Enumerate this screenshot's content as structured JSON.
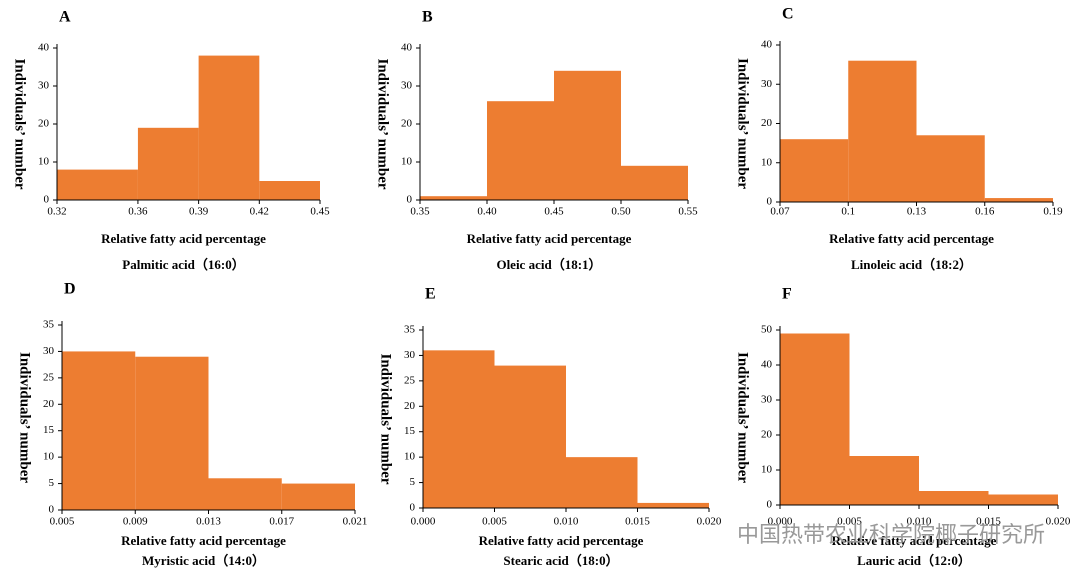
{
  "chart_data": [
    {
      "type": "histogram",
      "panel_label": "A",
      "ylabel": "Individuals’ number",
      "xlabel": "Relative fatty acid percentage",
      "subtitle": "Palmitic acid（16:0）",
      "bins": [
        0.32,
        0.36,
        0.39,
        0.42,
        0.45
      ],
      "values": [
        8,
        19,
        38,
        5
      ],
      "color": "#ED7D31",
      "xlim": [
        0.32,
        0.45
      ],
      "xticks": [
        0.32,
        0.36,
        0.39,
        0.42,
        0.45
      ],
      "ylim": [
        0,
        40
      ],
      "yticks": [
        0,
        10,
        20,
        30,
        40
      ]
    },
    {
      "type": "histogram",
      "panel_label": "B",
      "ylabel": "Individuals’ number",
      "xlabel": "Relative fatty acid percentage",
      "subtitle": "Oleic acid（18:1）",
      "bins": [
        0.35,
        0.4,
        0.45,
        0.5,
        0.55
      ],
      "values": [
        1,
        26,
        34,
        9
      ],
      "color": "#ED7D31",
      "xlim": [
        0.35,
        0.55
      ],
      "xticks": [
        0.35,
        {
          "value": 0.4,
          "label": "0.40"
        },
        0.45,
        {
          "value": 0.5,
          "label": "0.50"
        },
        0.55
      ],
      "ylim": [
        0,
        40
      ],
      "yticks": [
        0,
        10,
        20,
        30,
        40
      ]
    },
    {
      "type": "histogram",
      "panel_label": "C",
      "ylabel": "Individuals’ number",
      "xlabel": "Relative fatty acid percentage",
      "subtitle": "Linoleic acid（18:2）",
      "bins": [
        0.07,
        0.1,
        0.13,
        0.16,
        0.19
      ],
      "values": [
        16,
        36,
        17,
        1
      ],
      "color": "#ED7D31",
      "xlim": [
        0.07,
        0.19
      ],
      "xticks": [
        0.07,
        0.1,
        0.13,
        0.16,
        0.19
      ],
      "ylim": [
        0,
        40
      ],
      "yticks": [
        0,
        10,
        20,
        30,
        40
      ]
    },
    {
      "type": "histogram",
      "panel_label": "D",
      "ylabel": "Individuals’ number",
      "xlabel": "Relative fatty acid percentage",
      "subtitle": "Myristic acid（14:0）",
      "bins": [
        0.005,
        0.009,
        0.013,
        0.017,
        0.021
      ],
      "values": [
        30,
        29,
        6,
        5
      ],
      "color": "#ED7D31",
      "xlim": [
        0.005,
        0.021
      ],
      "xticks": [
        0.005,
        0.009,
        0.013,
        0.017,
        0.021
      ],
      "ylim": [
        0,
        35
      ],
      "yticks": [
        0,
        5,
        10,
        15,
        20,
        25,
        30,
        35
      ]
    },
    {
      "type": "histogram",
      "panel_label": "E",
      "ylabel": "Individuals’ number",
      "xlabel": "Relative fatty acid percentage",
      "subtitle": "Stearic acid（18:0）",
      "bins": [
        0,
        0.005,
        0.01,
        0.015,
        0.02
      ],
      "values": [
        31,
        28,
        10,
        1
      ],
      "color": "#ED7D31",
      "xlim": [
        0,
        0.02
      ],
      "xticks": [
        {
          "value": 0,
          "label": "0.000"
        },
        0.005,
        {
          "value": 0.01,
          "label": "0.010"
        },
        0.015,
        {
          "value": 0.02,
          "label": "0.020"
        }
      ],
      "ylim": [
        0,
        35
      ],
      "yticks": [
        0,
        5,
        10,
        15,
        20,
        25,
        30,
        35
      ]
    },
    {
      "type": "histogram",
      "panel_label": "F",
      "ylabel": "Individuals’ number",
      "xlabel": "Relative fatty acid percentage",
      "subtitle": "Lauric acid（12:0）",
      "bins": [
        0,
        0.005,
        0.01,
        0.015,
        0.02
      ],
      "values": [
        49,
        14,
        4,
        3
      ],
      "color": "#ED7D31",
      "xlim": [
        0,
        0.02
      ],
      "xticks": [
        {
          "value": 0,
          "label": "0.000"
        },
        0.005,
        {
          "value": 0.01,
          "label": "0.010"
        },
        0.015,
        {
          "value": 0.02,
          "label": "0.020"
        }
      ],
      "ylim": [
        0,
        50
      ],
      "yticks": [
        0,
        10,
        20,
        30,
        40,
        50
      ]
    }
  ],
  "watermark": "中国热带农业科学院椰子研究所"
}
